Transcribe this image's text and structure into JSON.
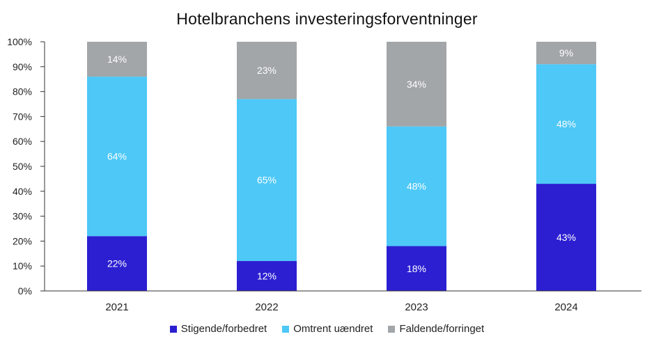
{
  "chart_data": {
    "type": "bar",
    "stacked": true,
    "title": "Hotelbranchens investeringsforventninger",
    "categories": [
      "2021",
      "2022",
      "2023",
      "2024"
    ],
    "series": [
      {
        "name": "Stigende/forbedret",
        "values": [
          22,
          12,
          18,
          43
        ],
        "labels": [
          "22%",
          "12%",
          "18%",
          "43%"
        ],
        "color": "#2c1fd1"
      },
      {
        "name": "Omtrent uændret",
        "values": [
          64,
          65,
          48,
          48
        ],
        "labels": [
          "64%",
          "65%",
          "48%",
          "48%"
        ],
        "color": "#4dc8f7"
      },
      {
        "name": "Faldende/forringet",
        "values": [
          14,
          23,
          34,
          9
        ],
        "labels": [
          "14%",
          "23%",
          "34%",
          "9%"
        ],
        "color": "#a2a6a8"
      }
    ],
    "ylim": [
      0,
      100
    ],
    "yticks": [
      "0%",
      "10%",
      "20%",
      "30%",
      "40%",
      "50%",
      "60%",
      "70%",
      "80%",
      "90%",
      "100%"
    ],
    "xlabel": "",
    "ylabel": "",
    "grid": false,
    "legend_position": "bottom"
  }
}
